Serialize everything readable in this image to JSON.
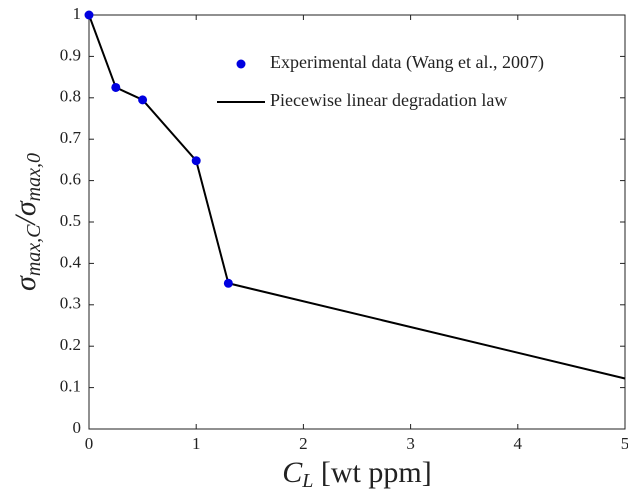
{
  "chart_data": {
    "type": "line",
    "xlabel": [
      "C",
      "L",
      " [wt ppm]"
    ],
    "ylabel": [
      "σ",
      "max,C",
      "/σ",
      "max,0"
    ],
    "xlim": [
      0,
      5
    ],
    "xticks": [
      0,
      1,
      2,
      3,
      4,
      5
    ],
    "ylim": [
      0,
      1
    ],
    "yticks": [
      0,
      0.1,
      0.2,
      0.3,
      0.4,
      0.5,
      0.6,
      0.7,
      0.8,
      0.9,
      1
    ],
    "grid": false,
    "legend": "upper right",
    "series": [
      {
        "name": "Experimental data (Wang et al., 2007)",
        "type": "scatter",
        "color": "#0000e0",
        "x": [
          0,
          0.25,
          0.5,
          1,
          1.3
        ],
        "values": [
          1,
          0.825,
          0.795,
          0.648,
          0.352
        ]
      },
      {
        "name": "Piecewise linear degradation law",
        "type": "line",
        "color": "#000000",
        "x": [
          0,
          0.25,
          0.5,
          1,
          1.3,
          5
        ],
        "values": [
          1,
          0.825,
          0.795,
          0.648,
          0.352,
          0.122
        ]
      }
    ]
  }
}
